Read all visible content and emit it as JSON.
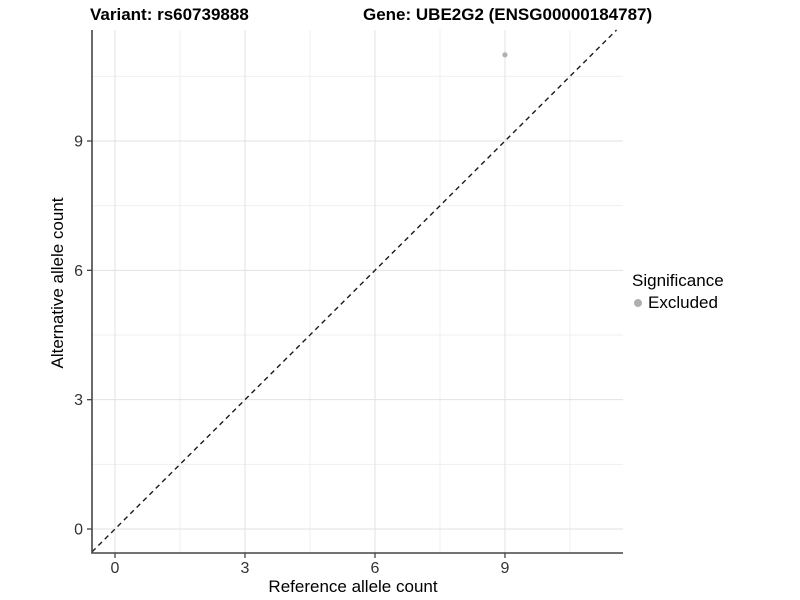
{
  "plot": {
    "title_variant": "Variant: rs60739888",
    "title_gene": "Gene: UBE2G2 (ENSG00000184787)",
    "x_axis": {
      "label": "Reference allele count"
    },
    "y_axis": {
      "label": "Alternative allele count"
    },
    "legend": {
      "title": "Significance",
      "items": [
        {
          "label": "Excluded",
          "color": "#b0b0b0"
        }
      ]
    }
  },
  "chart_data": {
    "type": "scatter",
    "title": "Variant: rs60739888 | Gene: UBE2G2 (ENSG00000184787)",
    "xlabel": "Reference allele count",
    "ylabel": "Alternative allele count",
    "xlim": [
      -0.55,
      11.7
    ],
    "ylim": [
      -0.56,
      11.6
    ],
    "x_ticks": [
      0,
      3,
      6,
      9
    ],
    "y_ticks": [
      0,
      3,
      6,
      9
    ],
    "x_minor_ticks": [
      1.5,
      4.5,
      7.5,
      10.5
    ],
    "y_minor_ticks": [
      1.5,
      4.5,
      7.5,
      10.5
    ],
    "grid": true,
    "legend_position": "right",
    "series": [
      {
        "name": "Excluded",
        "points": [
          {
            "x": 9,
            "y": 11
          }
        ],
        "color": "#b0b0b0"
      }
    ],
    "reference_line": {
      "type": "identity",
      "equation": "y = x",
      "style": "dashed",
      "color": "#1a1a1a"
    }
  },
  "colors": {
    "background": "#ffffff",
    "axis_line": "#454545",
    "tick_label": "#333333",
    "grid_major": "#e2e2e2",
    "grid_minor": "#efefef",
    "point": "#b0b0b0"
  }
}
